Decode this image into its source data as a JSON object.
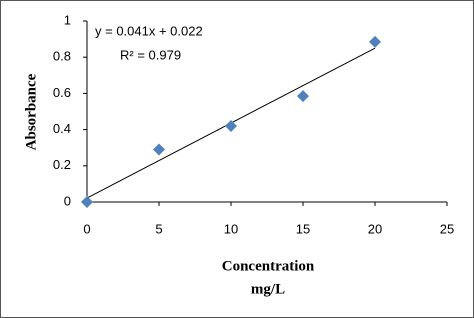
{
  "chart_data": {
    "type": "scatter",
    "x": [
      0,
      5,
      10,
      15,
      20
    ],
    "series": [
      {
        "color": "#4f81bd",
        "values": [
          0,
          0.29,
          0.42,
          0.585,
          0.885
        ]
      }
    ],
    "trendline": {
      "x": [
        0,
        20
      ],
      "values": [
        0.022,
        0.85
      ],
      "color": "#000000"
    },
    "annotations": [
      "y = 0.041x + 0.022",
      "R² = 0.979"
    ],
    "xlabel": [
      "Concentration",
      "mg/L"
    ],
    "ylabel": "Absorbance",
    "xlim": [
      0,
      25
    ],
    "xticks": [
      0,
      5,
      10,
      15,
      20,
      25
    ],
    "ylim": [
      0,
      1
    ],
    "yticks": [
      0,
      0.2,
      0.4,
      0.6,
      0.8,
      1
    ],
    "grid": false
  }
}
